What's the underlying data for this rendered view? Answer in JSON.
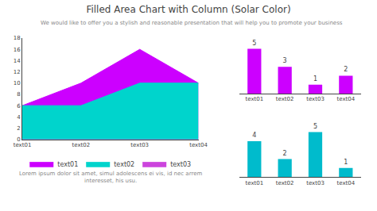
{
  "chart_data": [
    {
      "type": "area",
      "title": "Filled Area Chart with Column (Solar Color)",
      "subtitle": "We would like to offer you a stylish and reasonable presentation that will help you to promote your business",
      "annotations": [
        "Lorem ipsum dolor sit amet, simul adolescens ei vis, id nec arrem\ninteresset, his usu."
      ],
      "categories": [
        "text01",
        "text02",
        "text03",
        "text04"
      ],
      "series": [
        {
          "name": "text01",
          "color": "#cc00ff",
          "values": [
            6,
            10,
            16,
            10
          ]
        },
        {
          "name": "text02",
          "color": "#00d4cc",
          "values": [
            6,
            6,
            10,
            10
          ]
        },
        {
          "name": "text03",
          "color": "#cc44dd",
          "values": [
            null,
            null,
            null,
            null
          ]
        }
      ],
      "ylim": [
        0,
        18
      ],
      "yticks": [
        0,
        2,
        4,
        6,
        8,
        10,
        12,
        14,
        16,
        18
      ],
      "grid": false,
      "legend": "bottom"
    },
    {
      "type": "bar",
      "categories": [
        "text01",
        "text02",
        "text03",
        "text04"
      ],
      "values": [
        5,
        3,
        1,
        2
      ],
      "color": "#cc00ff",
      "ylim": [
        0,
        6.2
      ],
      "data_labels": true,
      "tick_labels": "x",
      "grid": false
    },
    {
      "type": "bar",
      "categories": [
        "text01",
        "text02",
        "text03",
        "text04"
      ],
      "values": [
        4,
        2,
        5,
        1
      ],
      "color": "#00bbcc",
      "ylim": [
        0,
        6.2
      ],
      "data_labels": true,
      "tick_labels": "x",
      "grid": false
    }
  ]
}
